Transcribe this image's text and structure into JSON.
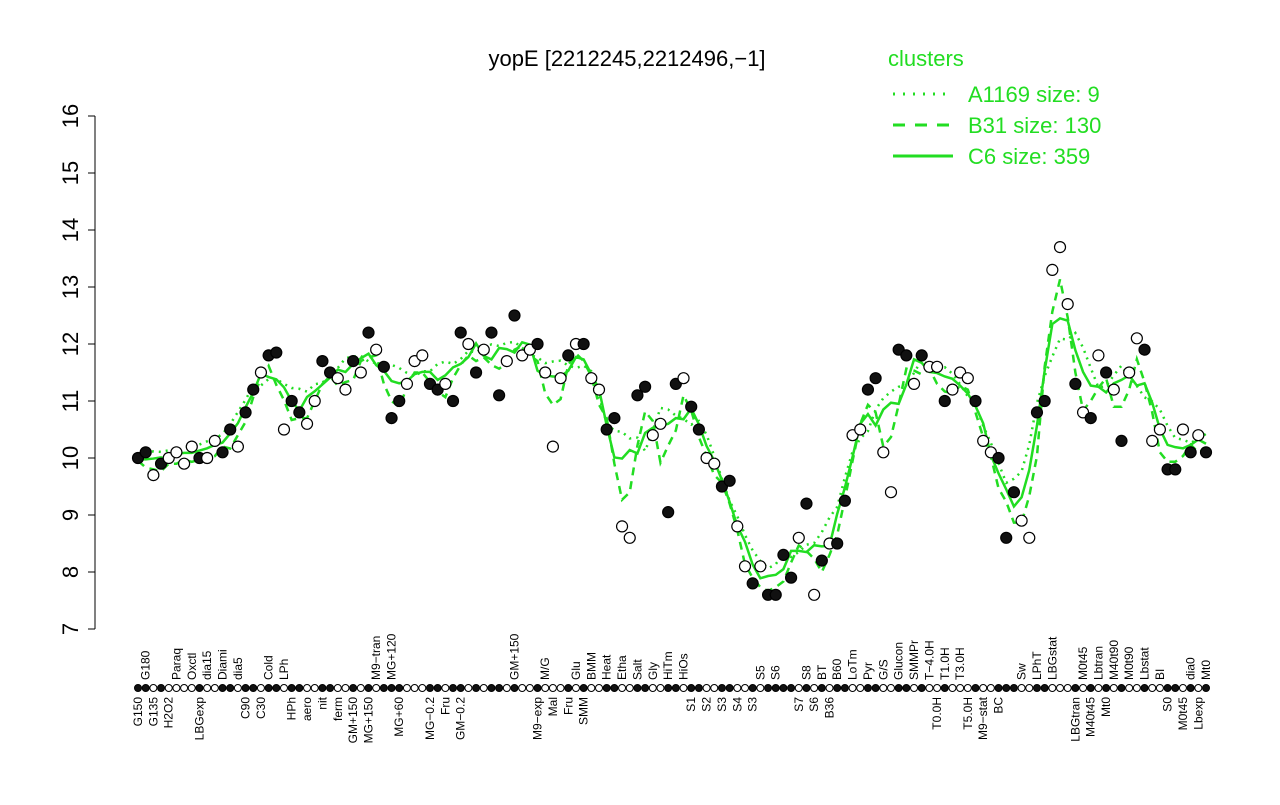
{
  "chart_data": {
    "type": "scatter",
    "title": "yopE [2212245,2212496,−1]",
    "xlabel": "",
    "ylabel": "",
    "ylim": [
      7,
      16
    ],
    "yticks": [
      "7",
      "8",
      "9",
      "10",
      "11",
      "12",
      "13",
      "14",
      "15",
      "16"
    ],
    "legend": {
      "title": "clusters",
      "placement": "top-right",
      "entries": [
        {
          "label": "A1169 size: 9",
          "style": "dotted"
        },
        {
          "label": "B31 size: 130",
          "style": "dashed"
        },
        {
          "label": "C6 size: 359",
          "style": "solid"
        }
      ],
      "color": "#22dd22"
    },
    "points": [
      {
        "label": "G150",
        "y": 10.0,
        "f": 1
      },
      {
        "label": "G180",
        "y": 10.1,
        "f": 1
      },
      {
        "label": "G135",
        "y": 9.7,
        "f": 0
      },
      {
        "label": "",
        "y": 9.9,
        "f": 1
      },
      {
        "label": "H2O2",
        "y": 10.0,
        "f": 0
      },
      {
        "label": "Paraq",
        "y": 10.1,
        "f": 0
      },
      {
        "label": "",
        "y": 9.9,
        "f": 0
      },
      {
        "label": "Oxctl",
        "y": 10.2,
        "f": 0
      },
      {
        "label": "LBGexp",
        "y": 10.0,
        "f": 1
      },
      {
        "label": "dia15",
        "y": 10.0,
        "f": 0
      },
      {
        "label": "",
        "y": 10.3,
        "f": 0
      },
      {
        "label": "Diami",
        "y": 10.1,
        "f": 1
      },
      {
        "label": "",
        "y": 10.5,
        "f": 1
      },
      {
        "label": "dia5",
        "y": 10.2,
        "f": 0
      },
      {
        "label": "C90",
        "y": 10.8,
        "f": 1
      },
      {
        "label": "",
        "y": 11.2,
        "f": 1
      },
      {
        "label": "C30",
        "y": 11.5,
        "f": 0
      },
      {
        "label": "Cold",
        "y": 11.8,
        "f": 1
      },
      {
        "label": "",
        "y": 11.85,
        "f": 1
      },
      {
        "label": "LPh",
        "y": 10.5,
        "f": 0
      },
      {
        "label": "HPh",
        "y": 11.0,
        "f": 1
      },
      {
        "label": "",
        "y": 10.8,
        "f": 1
      },
      {
        "label": "aero",
        "y": 10.6,
        "f": 0
      },
      {
        "label": "",
        "y": 11.0,
        "f": 0
      },
      {
        "label": "nit",
        "y": 11.7,
        "f": 1
      },
      {
        "label": "",
        "y": 11.5,
        "f": 1
      },
      {
        "label": "ferm",
        "y": 11.4,
        "f": 0
      },
      {
        "label": "",
        "y": 11.2,
        "f": 0
      },
      {
        "label": "GM+150",
        "y": 11.7,
        "f": 1
      },
      {
        "label": "",
        "y": 11.5,
        "f": 0
      },
      {
        "label": "MG+150",
        "y": 12.2,
        "f": 1
      },
      {
        "label": "M9−tran",
        "y": 11.9,
        "f": 0
      },
      {
        "label": "",
        "y": 11.6,
        "f": 1
      },
      {
        "label": "MG+120",
        "y": 10.7,
        "f": 1
      },
      {
        "label": "MG+60",
        "y": 11.0,
        "f": 1
      },
      {
        "label": "",
        "y": 11.3,
        "f": 0
      },
      {
        "label": "",
        "y": 11.7,
        "f": 0
      },
      {
        "label": "",
        "y": 11.8,
        "f": 0
      },
      {
        "label": "MG−0.2",
        "y": 11.3,
        "f": 1
      },
      {
        "label": "",
        "y": 11.2,
        "f": 1
      },
      {
        "label": "Fru",
        "y": 11.3,
        "f": 0
      },
      {
        "label": "",
        "y": 11.0,
        "f": 1
      },
      {
        "label": "GM−0.2",
        "y": 12.2,
        "f": 1
      },
      {
        "label": "",
        "y": 12.0,
        "f": 0
      },
      {
        "label": "",
        "y": 11.5,
        "f": 1
      },
      {
        "label": "",
        "y": 11.9,
        "f": 0
      },
      {
        "label": "",
        "y": 12.2,
        "f": 1
      },
      {
        "label": "",
        "y": 11.1,
        "f": 1
      },
      {
        "label": "",
        "y": 11.7,
        "f": 0
      },
      {
        "label": "GM+150",
        "y": 12.5,
        "f": 1
      },
      {
        "label": "",
        "y": 11.8,
        "f": 0
      },
      {
        "label": "",
        "y": 11.9,
        "f": 0
      },
      {
        "label": "M9−exp",
        "y": 12.0,
        "f": 1
      },
      {
        "label": "M/G",
        "y": 11.5,
        "f": 0
      },
      {
        "label": "Mal",
        "y": 10.2,
        "f": 0
      },
      {
        "label": "",
        "y": 11.4,
        "f": 0
      },
      {
        "label": "Fru",
        "y": 11.8,
        "f": 1
      },
      {
        "label": "Glu",
        "y": 12.0,
        "f": 0
      },
      {
        "label": "SMM",
        "y": 12.0,
        "f": 1
      },
      {
        "label": "BMM",
        "y": 11.4,
        "f": 0
      },
      {
        "label": "",
        "y": 11.2,
        "f": 0
      },
      {
        "label": "Heat",
        "y": 10.5,
        "f": 1
      },
      {
        "label": "",
        "y": 10.7,
        "f": 1
      },
      {
        "label": "Etha",
        "y": 8.8,
        "f": 0
      },
      {
        "label": "",
        "y": 8.6,
        "f": 0
      },
      {
        "label": "Salt",
        "y": 11.1,
        "f": 1
      },
      {
        "label": "",
        "y": 11.25,
        "f": 1
      },
      {
        "label": "Gly",
        "y": 10.4,
        "f": 0
      },
      {
        "label": "",
        "y": 10.6,
        "f": 0
      },
      {
        "label": "HiTm",
        "y": 9.05,
        "f": 1
      },
      {
        "label": "",
        "y": 11.3,
        "f": 1
      },
      {
        "label": "HiOs",
        "y": 11.4,
        "f": 0
      },
      {
        "label": "S1",
        "y": 10.9,
        "f": 1
      },
      {
        "label": "",
        "y": 10.5,
        "f": 1
      },
      {
        "label": "S2",
        "y": 10.0,
        "f": 0
      },
      {
        "label": "",
        "y": 9.9,
        "f": 0
      },
      {
        "label": "S3",
        "y": 9.5,
        "f": 1
      },
      {
        "label": "",
        "y": 9.6,
        "f": 1
      },
      {
        "label": "S4",
        "y": 8.8,
        "f": 0
      },
      {
        "label": "",
        "y": 8.1,
        "f": 0
      },
      {
        "label": "S3",
        "y": 7.8,
        "f": 1
      },
      {
        "label": "S5",
        "y": 8.1,
        "f": 0
      },
      {
        "label": "",
        "y": 7.6,
        "f": 1
      },
      {
        "label": "S6",
        "y": 7.6,
        "f": 1
      },
      {
        "label": "",
        "y": 8.3,
        "f": 1
      },
      {
        "label": "",
        "y": 7.9,
        "f": 1
      },
      {
        "label": "S7",
        "y": 8.6,
        "f": 0
      },
      {
        "label": "S8",
        "y": 9.2,
        "f": 1
      },
      {
        "label": "S6",
        "y": 7.6,
        "f": 0
      },
      {
        "label": "BT",
        "y": 8.2,
        "f": 1
      },
      {
        "label": "B36",
        "y": 8.5,
        "f": 0
      },
      {
        "label": "B60",
        "y": 8.5,
        "f": 1
      },
      {
        "label": "",
        "y": 9.25,
        "f": 1
      },
      {
        "label": "LoTm",
        "y": 10.4,
        "f": 0
      },
      {
        "label": "",
        "y": 10.5,
        "f": 0
      },
      {
        "label": "Pyr",
        "y": 11.2,
        "f": 1
      },
      {
        "label": "",
        "y": 11.4,
        "f": 1
      },
      {
        "label": "G/S",
        "y": 10.1,
        "f": 0
      },
      {
        "label": "",
        "y": 9.4,
        "f": 0
      },
      {
        "label": "Glucon",
        "y": 11.9,
        "f": 1
      },
      {
        "label": "",
        "y": 11.8,
        "f": 1
      },
      {
        "label": "SMMPr",
        "y": 11.3,
        "f": 0
      },
      {
        "label": "",
        "y": 11.8,
        "f": 1
      },
      {
        "label": "T−4.0H",
        "y": 11.6,
        "f": 0
      },
      {
        "label": "T0.0H",
        "y": 11.6,
        "f": 0
      },
      {
        "label": "T1.0H",
        "y": 11.0,
        "f": 1
      },
      {
        "label": "",
        "y": 11.2,
        "f": 0
      },
      {
        "label": "T3.0H",
        "y": 11.5,
        "f": 0
      },
      {
        "label": "T5.0H",
        "y": 11.4,
        "f": 0
      },
      {
        "label": "",
        "y": 11.0,
        "f": 1
      },
      {
        "label": "M9−stat",
        "y": 10.3,
        "f": 0
      },
      {
        "label": "",
        "y": 10.1,
        "f": 0
      },
      {
        "label": "BC",
        "y": 10.0,
        "f": 1
      },
      {
        "label": "",
        "y": 8.6,
        "f": 1
      },
      {
        "label": "",
        "y": 9.4,
        "f": 1
      },
      {
        "label": "Sw",
        "y": 8.9,
        "f": 0
      },
      {
        "label": "",
        "y": 8.6,
        "f": 0
      },
      {
        "label": "LPhT",
        "y": 10.8,
        "f": 1
      },
      {
        "label": "",
        "y": 11.0,
        "f": 1
      },
      {
        "label": "LBGstat",
        "y": 13.3,
        "f": 0
      },
      {
        "label": "",
        "y": 13.7,
        "f": 0
      },
      {
        "label": "",
        "y": 12.7,
        "f": 0
      },
      {
        "label": "LBGtran",
        "y": 11.3,
        "f": 1
      },
      {
        "label": "M0t45",
        "y": 10.8,
        "f": 0
      },
      {
        "label": "M40t45",
        "y": 10.7,
        "f": 1
      },
      {
        "label": "Lbtran",
        "y": 11.8,
        "f": 0
      },
      {
        "label": "Mt0",
        "y": 11.5,
        "f": 1
      },
      {
        "label": "M40t90",
        "y": 11.2,
        "f": 0
      },
      {
        "label": "",
        "y": 10.3,
        "f": 1
      },
      {
        "label": "M0t90",
        "y": 11.5,
        "f": 0
      },
      {
        "label": "",
        "y": 12.1,
        "f": 0
      },
      {
        "label": "Lbstat",
        "y": 11.9,
        "f": 1
      },
      {
        "label": "",
        "y": 10.3,
        "f": 0
      },
      {
        "label": "BI",
        "y": 10.5,
        "f": 0
      },
      {
        "label": "S0",
        "y": 9.8,
        "f": 1
      },
      {
        "label": "",
        "y": 9.8,
        "f": 1
      },
      {
        "label": "M0t45",
        "y": 10.5,
        "f": 0
      },
      {
        "label": "dia0",
        "y": 10.1,
        "f": 1
      },
      {
        "label": "Lbexp",
        "y": 10.4,
        "f": 0
      },
      {
        "label": "Mt0",
        "y": 10.1,
        "f": 1
      }
    ]
  }
}
